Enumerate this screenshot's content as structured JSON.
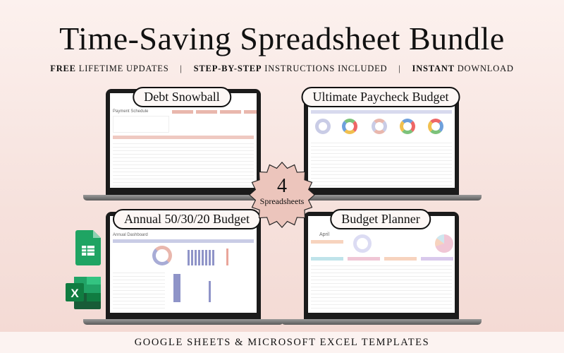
{
  "header": {
    "title": "Time-Saving Spreadsheet Bundle",
    "features": [
      {
        "bold": "FREE",
        "rest": " LIFETIME UPDATES"
      },
      {
        "bold": "STEP-BY-STEP",
        "rest": " INSTRUCTIONS INCLUDED"
      },
      {
        "bold": "INSTANT",
        "rest": " DOWNLOAD"
      }
    ],
    "separator": "|"
  },
  "products": [
    {
      "label": "Debt Snowball",
      "sheet_title": "Payment Schedule"
    },
    {
      "label": "Ultimate Paycheck Budget"
    },
    {
      "label": "Annual 50/30/20 Budget",
      "sheet_title": "Annual Dashboard"
    },
    {
      "label": "Budget Planner",
      "sheet_title": "April"
    }
  ],
  "badge": {
    "count": "4",
    "label": "Spreadsheets",
    "color": "#ecc5bc"
  },
  "icons": [
    "google-sheets-icon",
    "microsoft-excel-icon"
  ],
  "footer": {
    "text": "GOOGLE SHEETS & MICROSOFT EXCEL TEMPLATES"
  },
  "colors": {
    "accent_pink": "#e9b7ad",
    "accent_lavender": "#a8acd6",
    "sheets_green": "#1fa463",
    "excel_green": "#1d6f42"
  }
}
